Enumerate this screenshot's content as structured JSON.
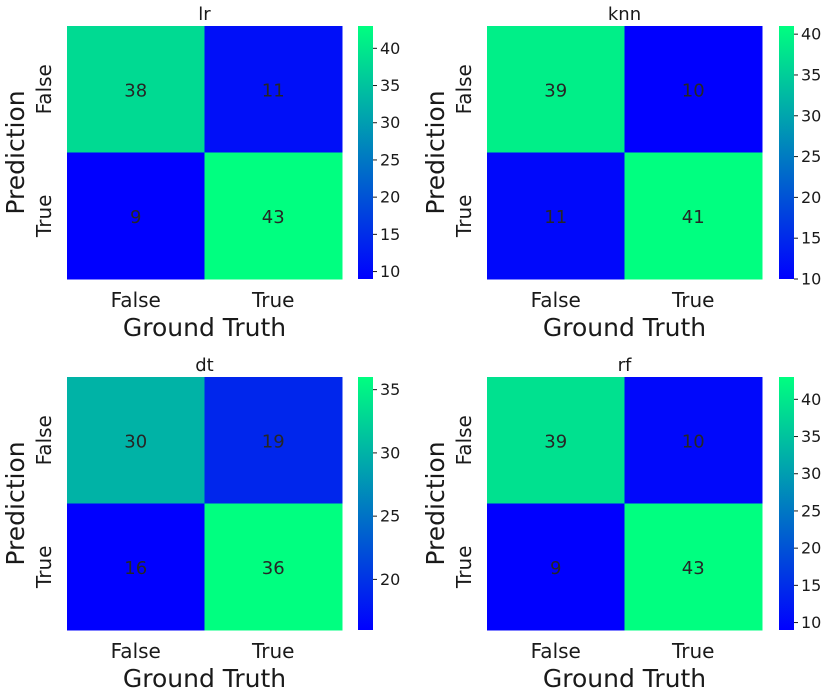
{
  "chart_data": [
    {
      "type": "heatmap",
      "title": "lr",
      "xlabel": "Ground Truth",
      "ylabel": "Prediction",
      "x_categories": [
        "False",
        "True"
      ],
      "y_categories": [
        "False",
        "True"
      ],
      "values": [
        [
          38,
          11
        ],
        [
          9,
          43
        ]
      ],
      "colormap": "winter",
      "colorbar": {
        "range": [
          9,
          43
        ],
        "ticks": [
          10,
          15,
          20,
          25,
          30,
          35,
          40
        ]
      }
    },
    {
      "type": "heatmap",
      "title": "knn",
      "xlabel": "Ground Truth",
      "ylabel": "Prediction",
      "x_categories": [
        "False",
        "True"
      ],
      "y_categories": [
        "False",
        "True"
      ],
      "values": [
        [
          39,
          10
        ],
        [
          11,
          41
        ]
      ],
      "colormap": "winter",
      "colorbar": {
        "range": [
          10,
          41
        ],
        "ticks": [
          10,
          15,
          20,
          25,
          30,
          35,
          40
        ]
      }
    },
    {
      "type": "heatmap",
      "title": "dt",
      "xlabel": "Ground Truth",
      "ylabel": "Prediction",
      "x_categories": [
        "False",
        "True"
      ],
      "y_categories": [
        "False",
        "True"
      ],
      "values": [
        [
          30,
          19
        ],
        [
          16,
          36
        ]
      ],
      "colormap": "winter",
      "colorbar": {
        "range": [
          16,
          36
        ],
        "ticks": [
          20,
          25,
          30,
          35
        ]
      }
    },
    {
      "type": "heatmap",
      "title": "rf",
      "xlabel": "Ground Truth",
      "ylabel": "Prediction",
      "x_categories": [
        "False",
        "True"
      ],
      "y_categories": [
        "False",
        "True"
      ],
      "values": [
        [
          39,
          10
        ],
        [
          9,
          43
        ]
      ],
      "colormap": "winter",
      "colorbar": {
        "range": [
          9,
          43
        ],
        "ticks": [
          10,
          15,
          20,
          25,
          30,
          35,
          40
        ]
      }
    }
  ],
  "colors": {
    "colormap_low": "#0000ff",
    "colormap_high": "#00ff80",
    "annotation_dark": "#262626",
    "annotation_light": "#ffffff",
    "text": "#1a1a1a"
  }
}
